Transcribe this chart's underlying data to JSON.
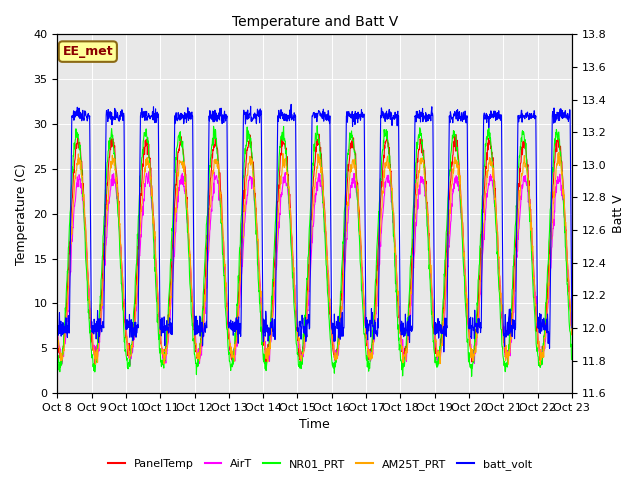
{
  "title": "Temperature and Batt V",
  "xlabel": "Time",
  "ylabel_left": "Temperature (C)",
  "ylabel_right": "Batt V",
  "ylim_left": [
    0,
    40
  ],
  "ylim_right": [
    11.6,
    13.8
  ],
  "yticks_left": [
    0,
    5,
    10,
    15,
    20,
    25,
    30,
    35,
    40
  ],
  "yticks_right": [
    11.6,
    11.8,
    12.0,
    12.2,
    12.4,
    12.6,
    12.8,
    13.0,
    13.2,
    13.4,
    13.6,
    13.8
  ],
  "xtick_labels": [
    "Oct 8",
    "Oct 9",
    "Oct 10",
    "Oct 11",
    "Oct 12",
    "Oct 13",
    "Oct 14",
    "Oct 15",
    "Oct 16",
    "Oct 17",
    "Oct 18",
    "Oct 19",
    "Oct 20",
    "Oct 21",
    "Oct 22",
    "Oct 23"
  ],
  "annotation_text": "EE_met",
  "annotation_color": "#8B0000",
  "annotation_bg": "#FFFF99",
  "annotation_border": "#8B6914",
  "colors": {
    "PanelTemp": "#FF0000",
    "AirT": "#FF00FF",
    "NR01_PRT": "#00FF00",
    "AM25T_PRT": "#FFA500",
    "batt_volt": "#0000FF"
  },
  "background_plot": "#E8E8E8",
  "n_days": 15,
  "num_points": 1500
}
